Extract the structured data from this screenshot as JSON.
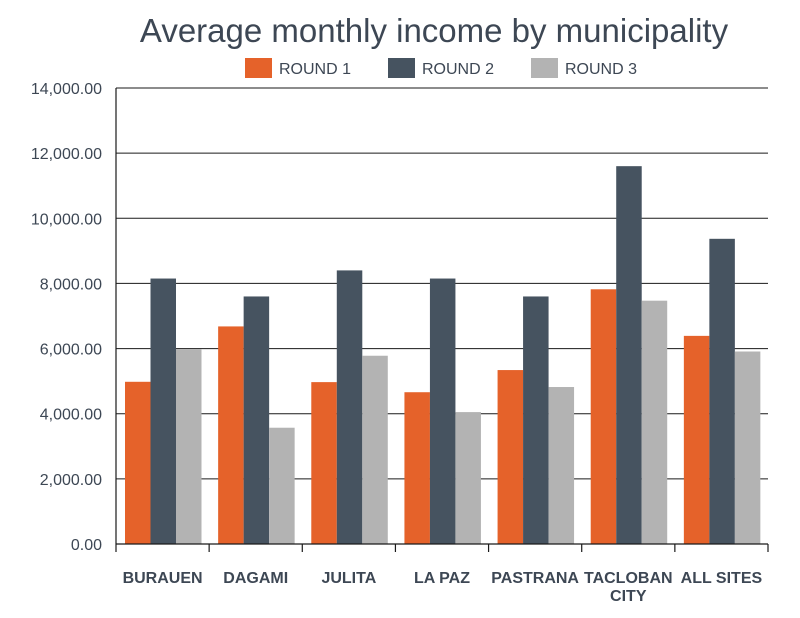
{
  "chart_data": {
    "type": "bar",
    "title": "Average monthly income by municipality",
    "xlabel": "",
    "ylabel": "",
    "categories": [
      "BURAUEN",
      "DAGAMI",
      "JULITA",
      "LA PAZ",
      "PASTRANA",
      "TACLOBAN CITY",
      "ALL SITES"
    ],
    "category_lines": [
      [
        "BURAUEN"
      ],
      [
        "DAGAMI"
      ],
      [
        "JULITA"
      ],
      [
        "LA PAZ"
      ],
      [
        "PASTRANA"
      ],
      [
        "TACLOBAN",
        "CITY"
      ],
      [
        "ALL SITES"
      ]
    ],
    "series": [
      {
        "name": "ROUND 1",
        "color": "#e5622a",
        "values": [
          4980,
          6680,
          4970,
          4660,
          5340,
          7820,
          6390
        ]
      },
      {
        "name": "ROUND 2",
        "color": "#465360",
        "values": [
          8150,
          7600,
          8400,
          8150,
          7600,
          11600,
          9370
        ]
      },
      {
        "name": "ROUND 3",
        "color": "#b3b3b3",
        "values": [
          5980,
          3570,
          5780,
          4050,
          4820,
          7470,
          5910
        ]
      }
    ],
    "ylim": [
      0,
      14000
    ],
    "yticks": [
      0,
      2000,
      4000,
      6000,
      8000,
      10000,
      12000,
      14000
    ],
    "ytick_labels": [
      "0.00",
      "2,000.00",
      "4,000.00",
      "6,000.00",
      "8,000.00",
      "10,000.00",
      "12,000.00",
      "14,000.00"
    ],
    "grid": true,
    "legend_position": "top"
  }
}
